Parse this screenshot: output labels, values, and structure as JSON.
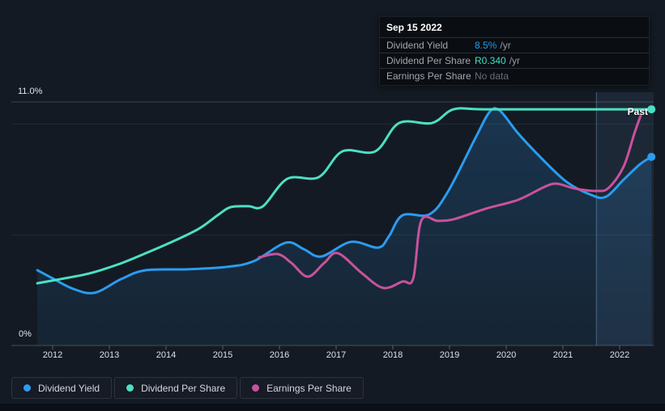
{
  "tooltip": {
    "date": "Sep 15 2022",
    "rows": [
      {
        "label": "Dividend Yield",
        "value": "8.5%",
        "suffix": "/yr",
        "value_color": "#1e9fe8"
      },
      {
        "label": "Dividend Per Share",
        "value": "R0.340",
        "suffix": "/yr",
        "value_color": "#3ee1c1"
      },
      {
        "label": "Earnings Per Share",
        "value": "No data",
        "suffix": "",
        "value_color": "#686e77"
      }
    ]
  },
  "axis": {
    "y_top_label": "11.0%",
    "y_bottom_label": "0%",
    "x_labels": [
      "2012",
      "2013",
      "2014",
      "2015",
      "2016",
      "2017",
      "2018",
      "2019",
      "2020",
      "2021",
      "2022"
    ]
  },
  "legend": [
    {
      "label": "Dividend Yield",
      "color": "#2b9cf0"
    },
    {
      "label": "Dividend Per Share",
      "color": "#4ce0c3"
    },
    {
      "label": "Earnings Per Share",
      "color": "#c9529c"
    }
  ],
  "chart_data": {
    "type": "line",
    "title": "",
    "past_label": "Past",
    "past_region_start_year": 2021.59,
    "x_axis": {
      "tick_labels": [
        2012,
        2013,
        2014,
        2015,
        2016,
        2017,
        2018,
        2019,
        2020,
        2021,
        2022
      ],
      "range": [
        2011.27,
        2022.62
      ]
    },
    "y_axis": {
      "unit": "%",
      "range": [
        0,
        11
      ],
      "top_label": "11.0%",
      "bottom_label": "0%",
      "gridlines_pct": [
        5,
        10
      ],
      "top_line_pct": 11,
      "baseline_pct": 0,
      "grid": true
    },
    "legend_position": "bottom-left",
    "series": [
      {
        "name": "Dividend Yield",
        "color": "#2b9cf0",
        "unit": "%",
        "area_fill": true,
        "end_dot": true,
        "current_label": "8.5% /yr",
        "points": [
          [
            2011.73,
            3.4
          ],
          [
            2012.0,
            3.03
          ],
          [
            2012.36,
            2.56
          ],
          [
            2012.74,
            2.38
          ],
          [
            2013.21,
            3.0
          ],
          [
            2013.64,
            3.4
          ],
          [
            2014.36,
            3.44
          ],
          [
            2015.07,
            3.55
          ],
          [
            2015.54,
            3.8
          ],
          [
            2016.11,
            4.64
          ],
          [
            2016.43,
            4.35
          ],
          [
            2016.74,
            4.02
          ],
          [
            2017.26,
            4.68
          ],
          [
            2017.74,
            4.42
          ],
          [
            2017.93,
            4.93
          ],
          [
            2018.17,
            5.88
          ],
          [
            2018.64,
            5.92
          ],
          [
            2018.97,
            6.94
          ],
          [
            2019.46,
            9.39
          ],
          [
            2019.71,
            10.56
          ],
          [
            2019.89,
            10.6
          ],
          [
            2020.21,
            9.58
          ],
          [
            2020.64,
            8.41
          ],
          [
            2021.07,
            7.38
          ],
          [
            2021.5,
            6.8
          ],
          [
            2021.76,
            6.72
          ],
          [
            2022.07,
            7.49
          ],
          [
            2022.36,
            8.19
          ],
          [
            2022.56,
            8.52
          ]
        ]
      },
      {
        "name": "Dividend Per Share",
        "color": "#4ce0c3",
        "unit": "R per share plotted on yield axis; current value R0.340/yr",
        "area_fill": false,
        "end_dot": true,
        "current_label": "R0.340 /yr",
        "points": [
          [
            2011.73,
            2.81
          ],
          [
            2012.14,
            3.0
          ],
          [
            2012.64,
            3.25
          ],
          [
            2013.14,
            3.65
          ],
          [
            2013.57,
            4.09
          ],
          [
            2014.07,
            4.64
          ],
          [
            2014.57,
            5.26
          ],
          [
            2014.93,
            5.92
          ],
          [
            2015.14,
            6.25
          ],
          [
            2015.45,
            6.29
          ],
          [
            2015.71,
            6.29
          ],
          [
            2016.14,
            7.53
          ],
          [
            2016.69,
            7.6
          ],
          [
            2017.11,
            8.77
          ],
          [
            2017.69,
            8.77
          ],
          [
            2018.11,
            10.05
          ],
          [
            2018.69,
            10.05
          ],
          [
            2019.07,
            10.67
          ],
          [
            2019.6,
            10.67
          ],
          [
            2021.0,
            10.67
          ],
          [
            2022.0,
            10.67
          ],
          [
            2022.56,
            10.67
          ]
        ]
      },
      {
        "name": "Earnings Per Share",
        "color": "#c9529c",
        "unit": "R per share plotted on yield axis; no data at Sep 15 2022",
        "area_fill": false,
        "end_dot": false,
        "current_label": "No data",
        "points": [
          [
            2015.64,
            3.98
          ],
          [
            2015.97,
            4.13
          ],
          [
            2016.21,
            3.73
          ],
          [
            2016.5,
            3.11
          ],
          [
            2016.79,
            3.73
          ],
          [
            2017.03,
            4.17
          ],
          [
            2017.46,
            3.25
          ],
          [
            2017.83,
            2.6
          ],
          [
            2018.17,
            2.89
          ],
          [
            2018.36,
            3.03
          ],
          [
            2018.5,
            5.63
          ],
          [
            2018.79,
            5.63
          ],
          [
            2019.07,
            5.7
          ],
          [
            2019.64,
            6.18
          ],
          [
            2020.21,
            6.58
          ],
          [
            2020.67,
            7.16
          ],
          [
            2020.89,
            7.31
          ],
          [
            2021.21,
            7.09
          ],
          [
            2021.6,
            6.98
          ],
          [
            2021.81,
            7.13
          ],
          [
            2022.07,
            8.08
          ],
          [
            2022.26,
            9.58
          ],
          [
            2022.37,
            10.38
          ]
        ]
      }
    ]
  }
}
